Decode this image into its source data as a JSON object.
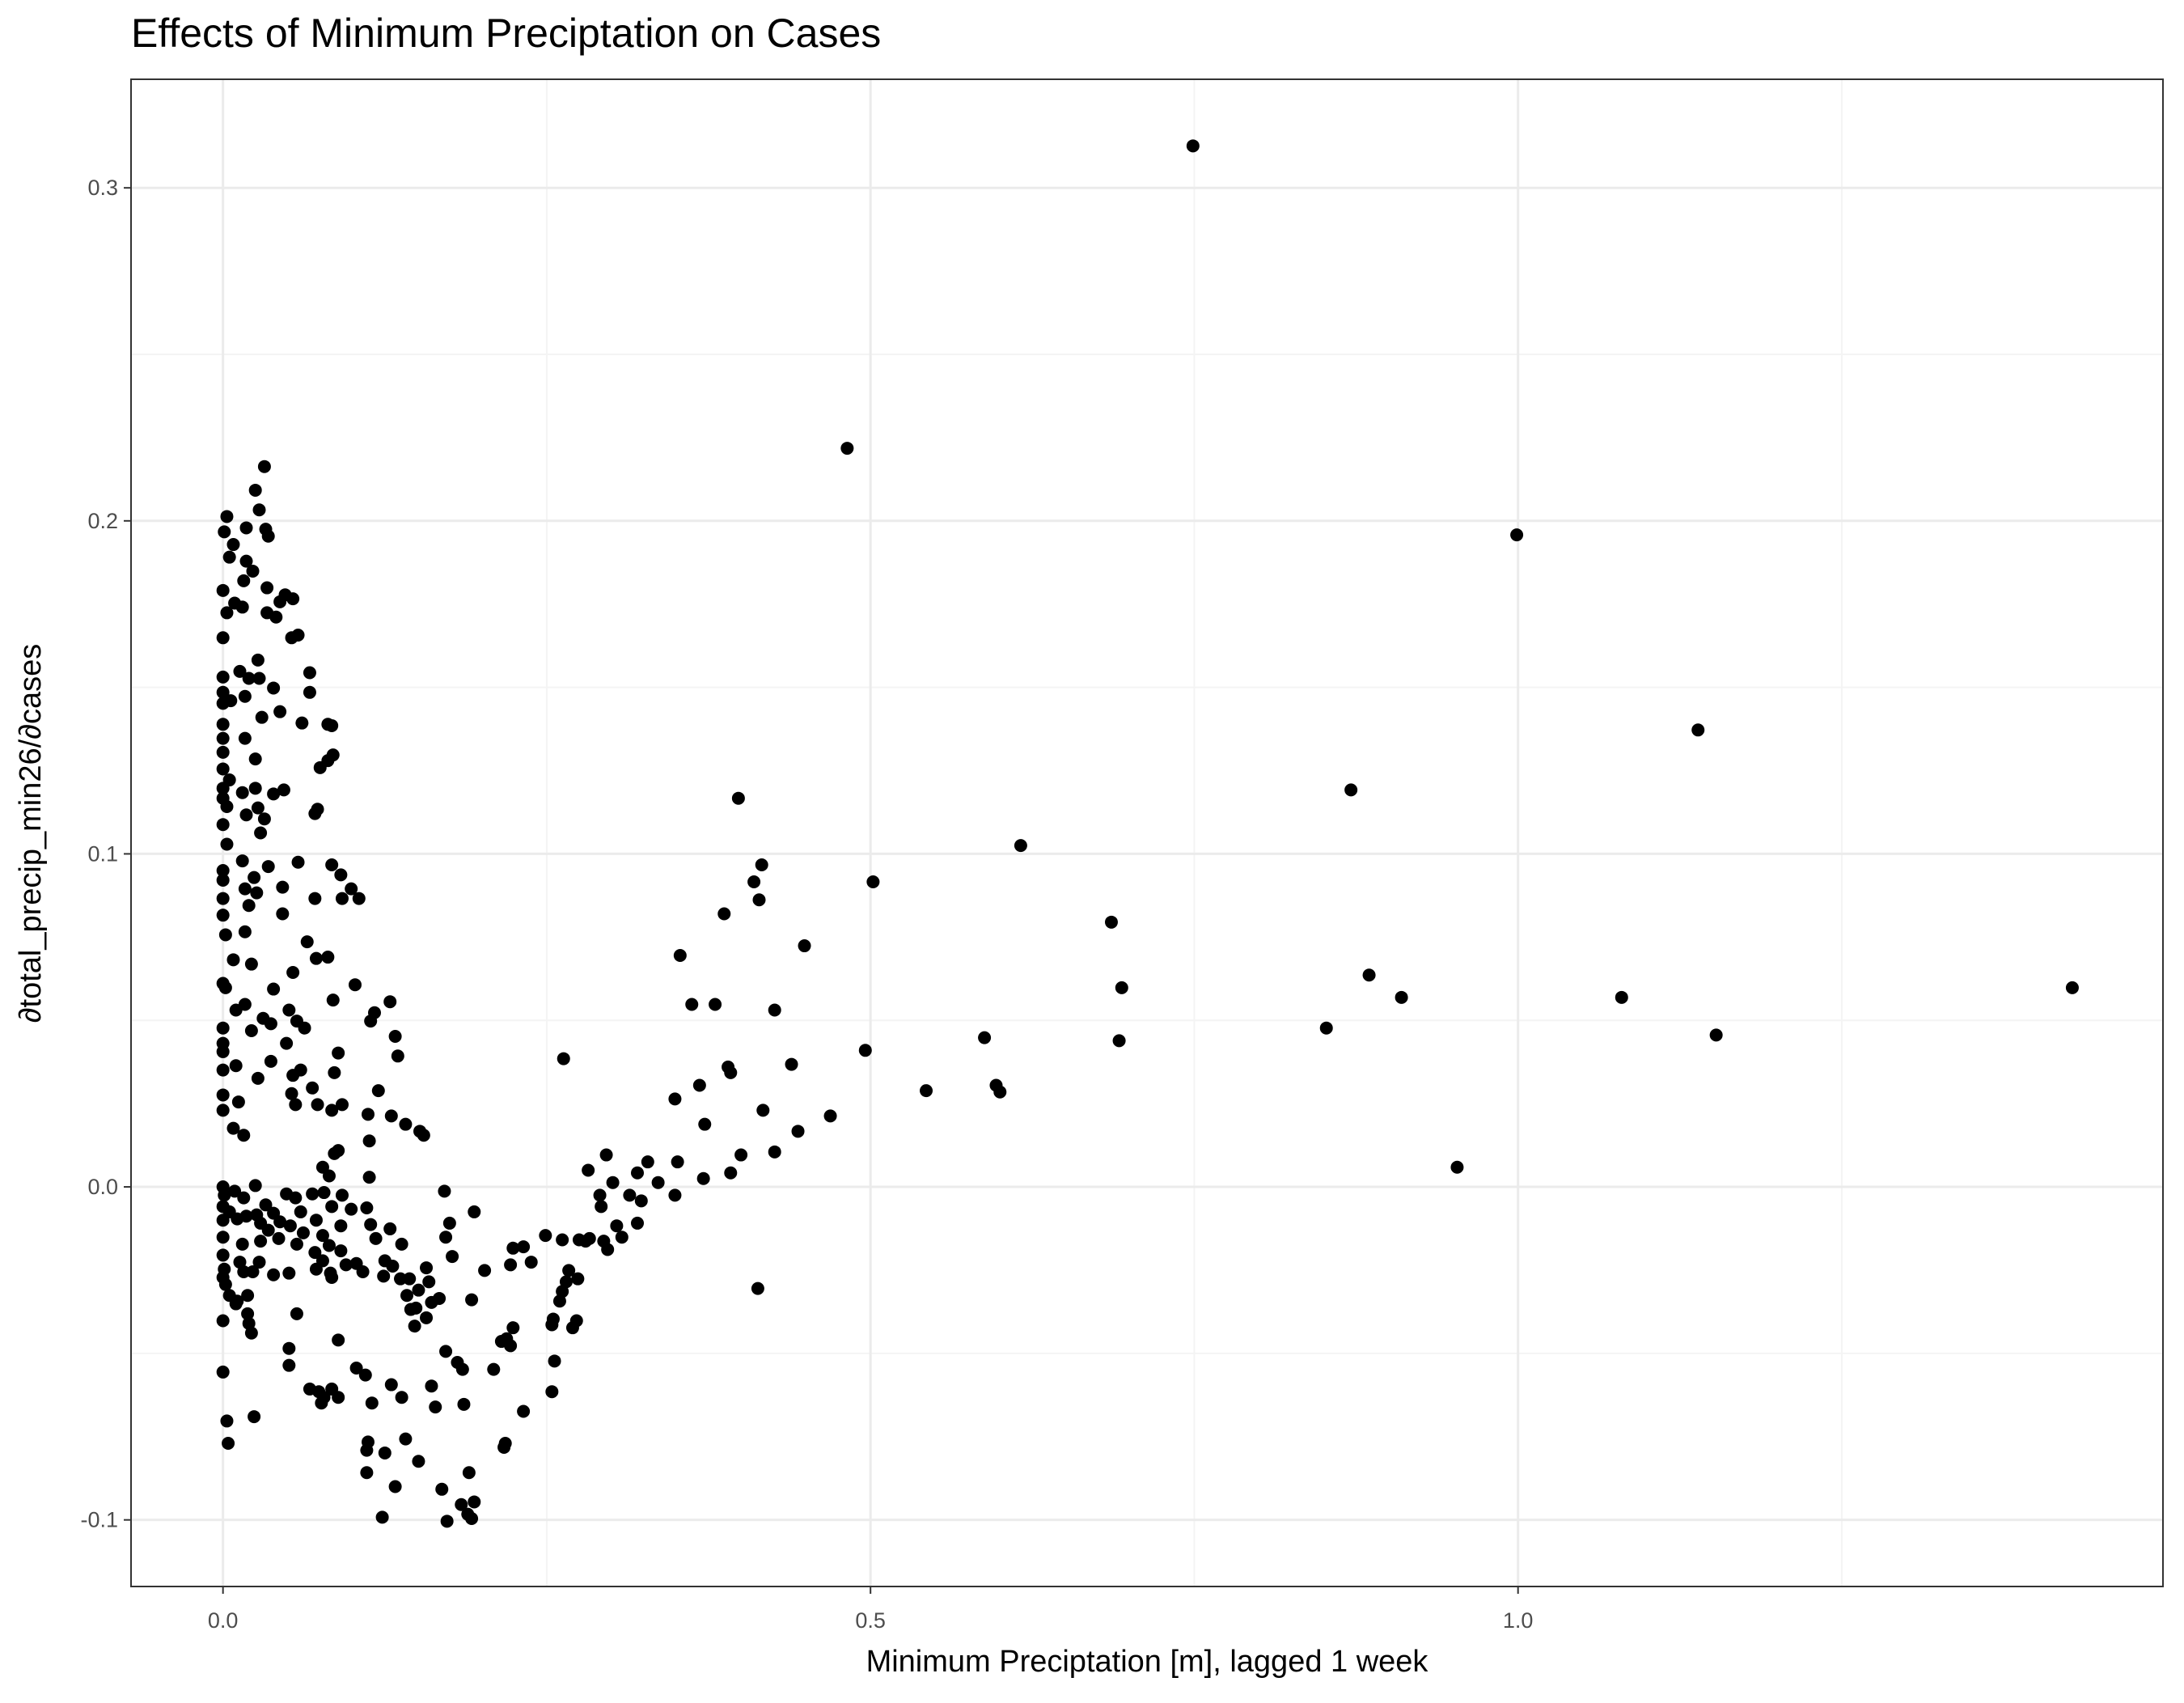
{
  "chart_data": {
    "type": "scatter",
    "title": "Effects of Minimum Preciptation on Cases",
    "x_label": "Minimum Preciptation [m], lagged 1 week",
    "y_label": "∂total_precip_min26/∂cases",
    "color": "#000000",
    "grid": true,
    "xlim": [
      -0.071,
      1.498
    ],
    "ylim": [
      -0.12,
      0.3326
    ],
    "xticks": [
      {
        "value": 0,
        "label": "0.0"
      },
      0.5,
      {
        "value": 1,
        "label": "1.0"
      }
    ],
    "yticks": [
      -0.1,
      {
        "value": 0,
        "label": "0.0"
      },
      0.1,
      0.2,
      0.3
    ],
    "xminor": [
      0.25,
      0.75,
      1.25
    ],
    "yminor": [
      -0.05,
      0.05,
      0.15,
      0.25
    ],
    "x": [
      0.749,
      0.482,
      0.999,
      1.139,
      0.871,
      0.398,
      0.616,
      0.416,
      0.502,
      0.41,
      0.414,
      0.387,
      0.686,
      0.449,
      0.353,
      0.694,
      1.428,
      0.885,
      0.91,
      1.08,
      0.362,
      0.38,
      0.426,
      0.852,
      1.153,
      0.588,
      0.692,
      0.496,
      0.439,
      0.39,
      0.392,
      0.368,
      0.597,
      0.6,
      0.543,
      0.349,
      0.417,
      0.469,
      0.444,
      0.372,
      0.953,
      0.4,
      0.426,
      0.296,
      0.282,
      0.351,
      0.328,
      0.32,
      0.392,
      0.371,
      0.336,
      0.301,
      0.291,
      0.349,
      0.314,
      0.292,
      0.323,
      0.32,
      0.304,
      0.308,
      0.294,
      0.28,
      0.275,
      0.249,
      0.283,
      0.262,
      0.297,
      0.413,
      0.232,
      0.224,
      0.238,
      0.222,
      0.202,
      0.267,
      0.274,
      0.265,
      0.262,
      0.26,
      0.255,
      0.273,
      0.27,
      0.254,
      0.224,
      0.219,
      0.222,
      0.215,
      0.256,
      0.209,
      0.254,
      0.232,
      0.218,
      0.217,
      0.263,
      0.194,
      0.171,
      0.175,
      0.172,
      0.177,
      0.157,
      0.159,
      0.167,
      0.192,
      0.157,
      0.148,
      0.149,
      0.161,
      0.142,
      0.151,
      0.145,
      0.172,
      0.181,
      0.185,
      0.161,
      0.186,
      0.164,
      0.13,
      0.138,
      0.141,
      0.115,
      0.112,
      0.111,
      0.125,
      0.111,
      0.133,
      0.151,
      0.169,
      0.19,
      0.194,
      0.184,
      0.189,
      0.192,
      0.173,
      0.123,
      0.152,
      0.155,
      0.141,
      0.13,
      0.12,
      0.135,
      0.114,
      0.129,
      0.117,
      0.133,
      0.112,
      0.113,
      0.113,
      0.111,
      0.114,
      0.129,
      0.118,
      0.125,
      0.138,
      0.103,
      0.108,
      0.131,
      0.137,
      0.144,
      0.124,
      0.103,
      0.11,
      0.089,
      0.078,
      0.067,
      0.074,
      0.084,
      0.076,
      0.051,
      0.051,
      0.089,
      0.057,
      0.024,
      0.003,
      0.004,
      0.0,
      0.0,
      0.019,
      0.022,
      0.02,
      0.01,
      0.005,
      0.019,
      0.011,
      0.084,
      0.032,
      0.025,
      0.028,
      0.003,
      0.018,
      0.001,
      0.033,
      0.035,
      0.008,
      0.005,
      0.018,
      0.016,
      0.023,
      0.034,
      0,
      0.048,
      0.054,
      0.044,
      0.015,
      0.009,
      0.003,
      0.034,
      0.041,
      0,
      0.053,
      0.058,
      0.027,
      0.067,
      0.013,
      0.02,
      0.028,
      0,
      0.039,
      0.067,
      0,
      0.017,
      0.006,
      0,
      0.061,
      0.081,
      0.084,
      0.044,
      0.03,
      0.017,
      0,
      0,
      0,
      0.085,
      0.081,
      0.075,
      0.025,
      0,
      0.005,
      0,
      0.025,
      0.047,
      0.015,
      0.039,
      0,
      0.073,
      0.003,
      0.027,
      0.018,
      0.071,
      0.032,
      0.029,
      0,
      0.003,
      0.015,
      0.058,
      0.035,
      0,
      0.084,
      0.091,
      0.024,
      0,
      0.046,
      0.099,
      0.017,
      0.026,
      0.071,
      0,
      0.02,
      0.046,
      0,
      0.092,
      0.105,
      0.002,
      0.017,
      0.065,
      0.008,
      0.072,
      0.081,
      0.022,
      0.054,
      0,
      0.002,
      0.102,
      0.039,
      0.085,
      0.017,
      0.01,
      0.051,
      0.057,
      0.031,
      0.037,
      0,
      0.022,
      0.063,
      0,
      0.049,
      0,
      0.089,
      0.037,
      0.01,
      0,
      0.06,
      0.054,
      0.027,
      0.086,
      0.069,
      0,
      0.053,
      0.056,
      0.012,
      0.073,
      0.084,
      0.092,
      0,
      0.008,
      0.016,
      0.086,
      0.089,
      0.077,
      0.082,
      0,
      0.001,
      0.009,
      0.016,
      0.025,
      0.033,
      0.049,
      0.056,
      0.069,
      0.078,
      0.084,
      0.092,
      0,
      0.005,
      0.011,
      0.018,
      0.026,
      0.039,
      0.044,
      0.06,
      0.072,
      0,
      0.029,
      0.035,
      0.052,
      0.062,
      0.077,
      0.091,
      0.099,
      0,
      0.015,
      0.029,
      0.043,
      0.057,
      0.082,
      0.091,
      0.071,
      0,
      0.013,
      0.028,
      0.077,
      0.095,
      0.001,
      0.016,
      0.023,
      0.039,
      0.051,
      0.083,
      0,
      0.002,
      0.072
    ],
    "values": [
      0.3126,
      0.2218,
      0.1958,
      0.1372,
      0.1192,
      0.1167,
      0.1025,
      0.0967,
      0.0916,
      0.0916,
      0.0862,
      0.082,
      0.0795,
      0.0724,
      0.0695,
      0.0598,
      0.0598,
      0.0636,
      0.0569,
      0.0569,
      0.0548,
      0.0548,
      0.0531,
      0.0477,
      0.0456,
      0.0448,
      0.0439,
      0.041,
      0.0368,
      0.036,
      0.0343,
      0.0305,
      0.0305,
      0.0285,
      0.0289,
      0.0264,
      0.023,
      0.0213,
      0.0167,
      0.0188,
      0.0059,
      0.0096,
      0.0105,
      0.0096,
      0.005,
      0.0075,
      0.0075,
      0.0042,
      0.0042,
      0.0025,
      0.0013,
      0.0013,
      -0.0025,
      -0.0025,
      -0.0025,
      -0.0059,
      -0.0042,
      -0.0109,
      -0.0117,
      -0.0151,
      -0.0163,
      -0.0163,
      -0.0159,
      -0.0146,
      -0.0155,
      -0.0159,
      -0.0188,
      -0.0305,
      -0.018,
      -0.0184,
      -0.0226,
      -0.0234,
      -0.0251,
      -0.0251,
      -0.0276,
      -0.0285,
      -0.0314,
      -0.0343,
      -0.0397,
      -0.0402,
      -0.0423,
      -0.0414,
      -0.0423,
      -0.0456,
      -0.0477,
      -0.0464,
      -0.0523,
      -0.0548,
      -0.0615,
      -0.0674,
      -0.077,
      -0.0782,
      0.0385,
      -0.0075,
      -0.0013,
      -0.0109,
      -0.0151,
      -0.0209,
      -0.0243,
      -0.0285,
      -0.0335,
      -0.0339,
      -0.0393,
      -0.0418,
      -0.0364,
      -0.0347,
      -0.0326,
      -0.031,
      -0.0368,
      -0.0494,
      -0.0527,
      -0.0548,
      -0.0598,
      -0.0653,
      -0.0661,
      -0.0594,
      -0.0632,
      -0.0757,
      -0.0649,
      -0.0766,
      -0.0791,
      -0.0799,
      -0.0858,
      -0.09,
      -0.0824,
      -0.0908,
      -0.0858,
      -0.0946,
      -0.0954,
      -0.0983,
      -0.0996,
      -0.1004,
      -0.0992,
      0.0167,
      0.0155,
      0.0188,
      0.0213,
      0.0289,
      0.0393,
      0.0498,
      0.0556,
      0.0523,
      0.0452,
      0.0218,
      0.0138,
      0.0029,
      -0.0063,
      -0.0113,
      -0.0126,
      -0.0155,
      -0.0222,
      -0.0172,
      -0.023,
      -0.0255,
      -0.0238,
      -0.0276,
      -0.0276,
      -0.0268,
      -0.0544,
      -0.0565,
      -0.0632,
      -0.0632,
      -0.0607,
      -0.0615,
      -0.0607,
      -0.0649,
      -0.0485,
      -0.0536,
      -0.046,
      -0.0381,
      -0.069,
      -0.0703,
      -0.077,
      -0.0556,
      -0.0402,
      -0.0381,
      -0.0439,
      -0.041,
      -0.0351,
      -0.0326,
      -0.0326,
      -0.0343,
      -0.0272,
      0.2163,
      0.2092,
      0.2033,
      0.2013,
      0.1979,
      0.1967,
      0.1975,
      0.1954,
      0.1929,
      0.1891,
      0.1879,
      0.182,
      0.1849,
      0.1799,
      0.1791,
      0.1778,
      0.1766,
      0.1757,
      0.1741,
      0.1753,
      0.1724,
      0.1724,
      0.1711,
      0.1649,
      0.1649,
      0.1657,
      0.1582,
      0.1544,
      0.1548,
      0.1527,
      0.1527,
      0.1531,
      0.1498,
      0.1485,
      0.1485,
      0.1473,
      0.146,
      0.1452,
      0.1393,
      0.1389,
      0.1385,
      0.1427,
      0.141,
      0.1347,
      0.1389,
      0.1347,
      0.1305,
      0.1297,
      0.128,
      0.1259,
      0.1285,
      0.1255,
      0.1222,
      0.1197,
      0.1197,
      0.1192,
      0.1184,
      0.118,
      0.1167,
      0.1134,
      0.1142,
      0.1138,
      0.1117,
      0.1121,
      0.1105,
      0.1063,
      0.1088,
      0.1029,
      0.0979,
      0.0975,
      0.0962,
      0.095,
      0.0967,
      0.0937,
      0.0929,
      0.0921,
      0.09,
      0.0895,
      0.0895,
      0.0883,
      0.0866,
      0.0866,
      0.0845,
      0.082,
      0.0816,
      0.0866,
      0.0866,
      0.0757,
      0.0766,
      0.0736,
      0.0682,
      0.0686,
      0.069,
      0.0669,
      0.0644,
      0.0611,
      0.0598,
      0.0607,
      0.0594,
      0.0561,
      0.0548,
      0.0531,
      0.0531,
      0.0498,
      0.0506,
      0.049,
      0.0477,
      0.0469,
      0.0477,
      0.0431,
      0.0431,
      0.0406,
      0.0402,
      0.0377,
      0.0364,
      0.0351,
      0.0351,
      0.0335,
      0.0326,
      0.0343,
      0.0297,
      0.0276,
      0.028,
      0.0247,
      0.0255,
      0.0247,
      0.023,
      0.0247,
      0.023,
      0.0176,
      0.0155,
      0.01,
      0.0109,
      0.0059,
      0.0033,
      0,
      -0.0025,
      -0.0013,
      -0.0033,
      0.0004,
      -0.0054,
      -0.0021,
      -0.0033,
      -0.0021,
      -0.0017,
      -0.0059,
      -0.0025,
      -0.0059,
      -0.0075,
      -0.0096,
      -0.0088,
      -0.0084,
      -0.0079,
      -0.0105,
      -0.0075,
      -0.01,
      -0.01,
      -0.0109,
      -0.013,
      -0.0117,
      -0.0138,
      -0.0146,
      -0.0117,
      -0.0067,
      -0.0151,
      -0.0172,
      -0.0163,
      -0.0155,
      -0.0172,
      -0.0176,
      -0.0192,
      -0.0197,
      -0.0205,
      -0.0226,
      -0.0226,
      -0.0222,
      -0.0234,
      -0.0247,
      -0.0255,
      -0.0255,
      -0.0264,
      -0.0259,
      -0.0259,
      -0.0272,
      -0.0293,
      -0.0247
    ]
  }
}
